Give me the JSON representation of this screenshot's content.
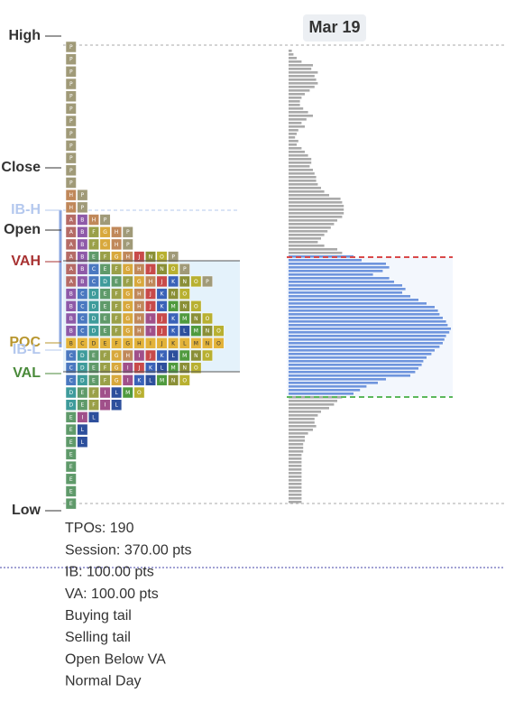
{
  "chart_data": {
    "type": "tpo",
    "date": "Mar 19",
    "levels": [
      {
        "label": "High",
        "color": "#333333"
      },
      {
        "label": "Close",
        "color": "#333333"
      },
      {
        "label": "IB-H",
        "color": "#b4c8ee"
      },
      {
        "label": "Open",
        "color": "#333333"
      },
      {
        "label": "VAH",
        "color": "#a83232"
      },
      {
        "label": "POC",
        "color": "#b8962e"
      },
      {
        "label": "IB-L",
        "color": "#b4c8ee"
      },
      {
        "label": "VAL",
        "color": "#4a8a3a"
      },
      {
        "label": "Low",
        "color": "#333333"
      }
    ],
    "tpo_rows": [
      "P",
      "P",
      "P",
      "P",
      "P",
      "P",
      "P",
      "P",
      "P",
      "P",
      "P",
      "P",
      "HP",
      "HP",
      "ABHP",
      "ABFGHP",
      "ABFGHP",
      "ABEFGHJNOP",
      "ABCEFGHJNOP",
      "ABCDEFGHJKNOP",
      "BCDEFGHJKNO",
      "BCDEFGHJKMNO",
      "BCDEFGHIJKMNO",
      "BCDEFGHIJKLMNO",
      "BCDEFGHIJKLMNO",
      "CDEFGHIJKLMNO",
      "CDEFGIJKLMNO",
      "CDEFGIKLMNO",
      "DEFILMO",
      "DEFIL",
      "EIL",
      "EL",
      "EL",
      "E",
      "E",
      "E",
      "E",
      "E"
    ],
    "letter_colors": {
      "A": "#b56b66",
      "B": "#8e5aa8",
      "C": "#4a78c0",
      "D": "#3e9b9b",
      "E": "#5f9a6a",
      "F": "#9aa048",
      "G": "#d8a83c",
      "H": "#c0885a",
      "I": "#a0508a",
      "J": "#c84a4a",
      "K": "#3a62b8",
      "L": "#2d4f9c",
      "M": "#4f9a3e",
      "N": "#8a8f36",
      "O": "#b8b030",
      "P": "#a09a78"
    },
    "poc_color": "#e3b33a",
    "series": [
      {
        "color": "#aaaaaa",
        "values": [
          2,
          3,
          5,
          8,
          15,
          14,
          18,
          16,
          17,
          18,
          16,
          13,
          10,
          8,
          7,
          7,
          9,
          12,
          15,
          11,
          8,
          10,
          6,
          5,
          4,
          6,
          5,
          8,
          10,
          12,
          14,
          14,
          13,
          15,
          16,
          17,
          17,
          18,
          20,
          22,
          25,
          32,
          33,
          34,
          34,
          34,
          33,
          30,
          28,
          26,
          24,
          22,
          20,
          18,
          22,
          30,
          33
        ]
      },
      {
        "color": "#6f95dd",
        "values": [
          40,
          45,
          60,
          62,
          58,
          52,
          62,
          65,
          70,
          72,
          70,
          75,
          80,
          85,
          90,
          92,
          93,
          95,
          97,
          98,
          100,
          99,
          97,
          96,
          95,
          93,
          90,
          88,
          85,
          83,
          82,
          80,
          78,
          75,
          60,
          55,
          48,
          44,
          40
        ]
      },
      {
        "color": "#aaaaaa",
        "values": [
          33,
          30,
          28,
          25,
          20,
          18,
          16,
          16,
          17,
          15,
          12,
          10,
          10,
          9,
          9,
          9,
          8,
          8,
          8,
          8,
          8,
          8,
          8,
          8,
          8,
          8,
          8,
          8,
          8,
          8
        ]
      }
    ],
    "stats": [
      "TPOs: 190",
      "Session: 370.00 pts",
      "IB: 100.00 pts",
      "VA: 100.00 pts",
      "Buying tail",
      "Selling tail",
      "Open Below VA",
      "Normal Day"
    ]
  }
}
